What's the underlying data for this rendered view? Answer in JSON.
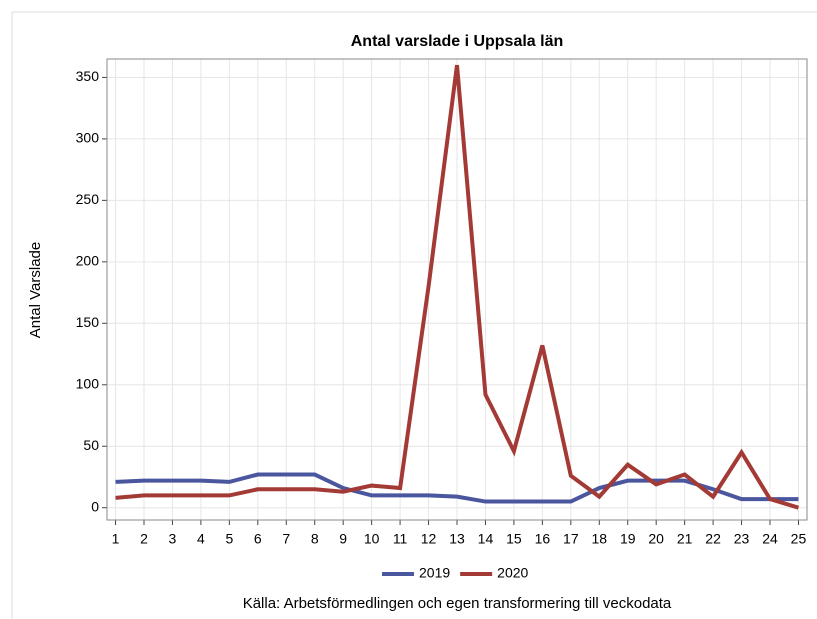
{
  "chart_data": {
    "type": "line",
    "title": "Antal varslade i Uppsala län",
    "y_label": "Antal Varslade",
    "caption": "Källa: Arbetsförmedlingen och egen transformering till veckodata",
    "x": [
      1,
      2,
      3,
      4,
      5,
      6,
      7,
      8,
      9,
      10,
      11,
      12,
      13,
      14,
      15,
      16,
      17,
      18,
      19,
      20,
      21,
      22,
      23,
      24,
      25
    ],
    "xlim": [
      0.7,
      25.3
    ],
    "xticks": [
      1,
      2,
      3,
      4,
      5,
      6,
      7,
      8,
      9,
      10,
      11,
      12,
      13,
      14,
      15,
      16,
      17,
      18,
      19,
      20,
      21,
      22,
      23,
      24,
      25
    ],
    "ylim": [
      -10,
      365
    ],
    "yticks": [
      0,
      50,
      100,
      150,
      200,
      250,
      300,
      350
    ],
    "grid": true,
    "legend": "bottom",
    "series": [
      {
        "name": "2019",
        "color": "#4a569e",
        "values": [
          21,
          22,
          22,
          22,
          21,
          27,
          27,
          27,
          16,
          10,
          10,
          10,
          9,
          5,
          5,
          5,
          5,
          16,
          22,
          22,
          22,
          15,
          7,
          7,
          7
        ]
      },
      {
        "name": "2020",
        "color": "#a33a35",
        "values": [
          8,
          10,
          10,
          10,
          10,
          15,
          15,
          15,
          13,
          18,
          16,
          180,
          360,
          92,
          46,
          132,
          26,
          9,
          35,
          19,
          27,
          9,
          45,
          7,
          0
        ]
      }
    ]
  }
}
